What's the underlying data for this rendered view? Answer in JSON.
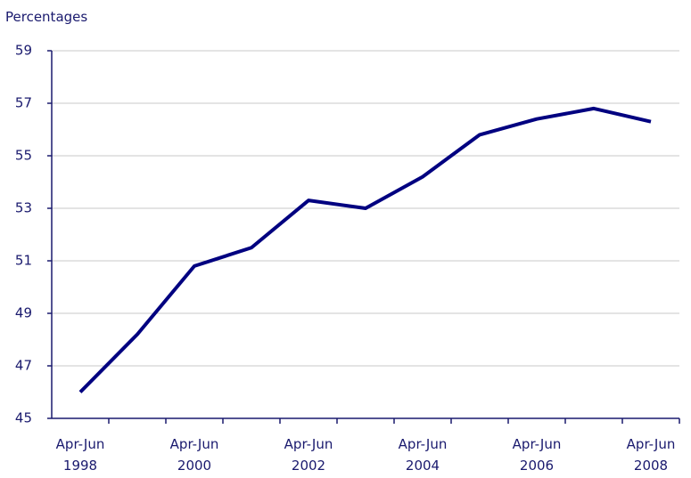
{
  "chart_data": {
    "type": "line",
    "y_axis_label": "Percentages",
    "categories": [
      "Apr-Jun\n1998",
      null,
      "Apr-Jun\n2000",
      null,
      "Apr-Jun\n2002",
      null,
      "Apr-Jun\n2004",
      null,
      "Apr-Jun\n2006",
      null,
      "Apr-Jun\n2008"
    ],
    "series": [
      {
        "name": "Percentages",
        "color": "#000080",
        "values": [
          46.0,
          48.2,
          50.8,
          51.5,
          53.3,
          53.0,
          54.2,
          55.8,
          56.4,
          56.8,
          56.3
        ]
      }
    ],
    "ylim": [
      45,
      59
    ],
    "yticks": [
      45,
      47,
      49,
      51,
      53,
      55,
      57,
      59
    ],
    "grid": true
  }
}
